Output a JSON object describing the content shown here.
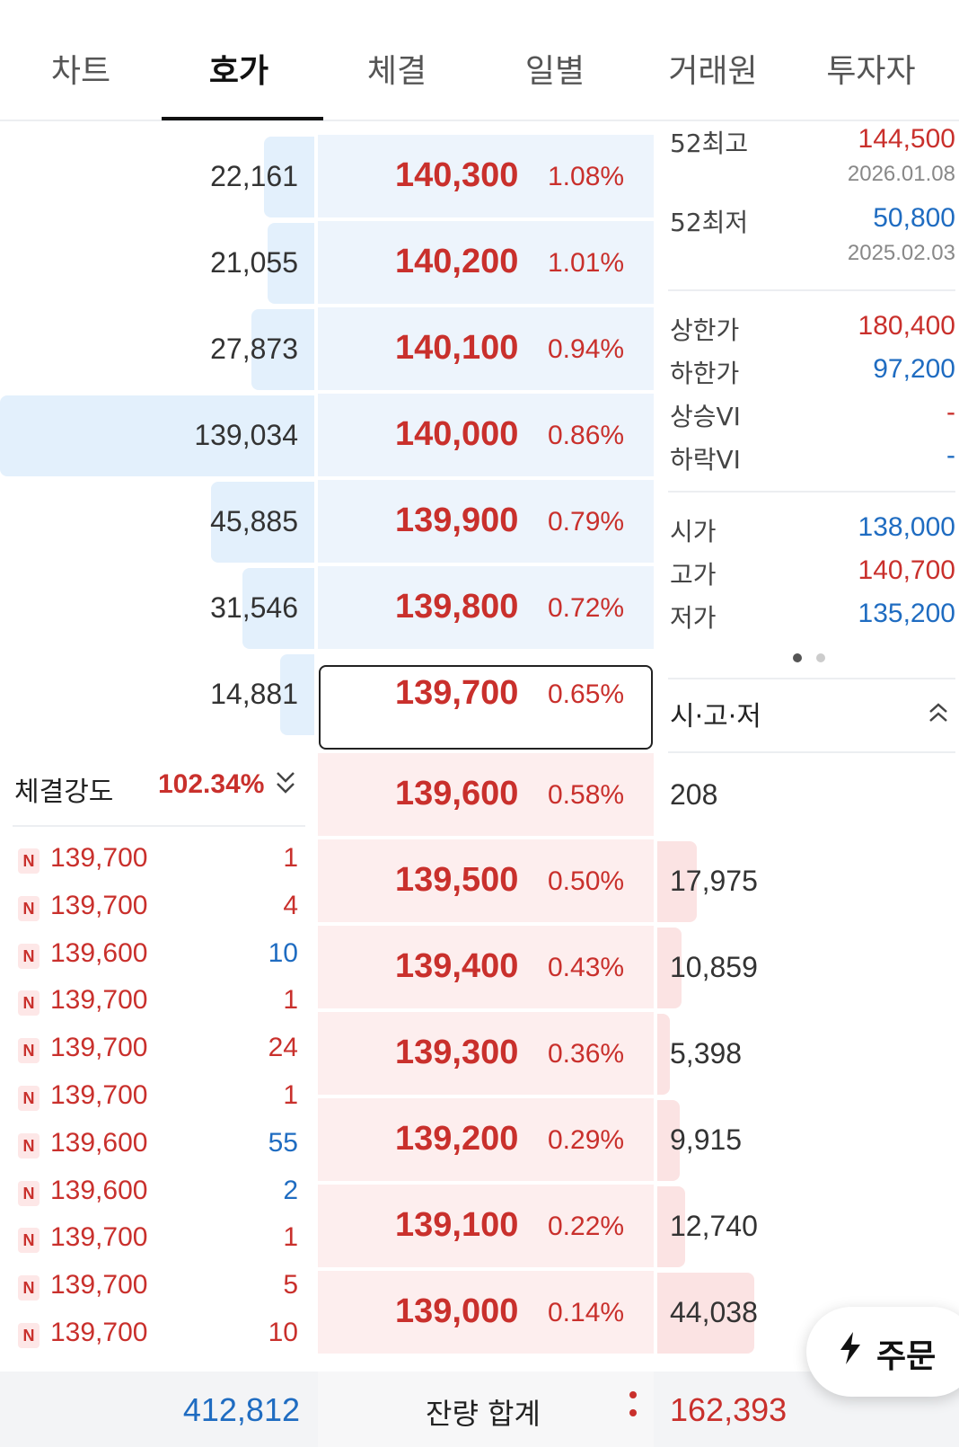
{
  "tabs": [
    "차트",
    "호가",
    "체결",
    "일별",
    "거래원",
    "투자자"
  ],
  "active_tab": "호가",
  "asks": [
    {
      "volume": "22,161",
      "price": "140,300",
      "pct": "1.08%",
      "bar": 0.16
    },
    {
      "volume": "21,055",
      "price": "140,200",
      "pct": "1.01%",
      "bar": 0.15
    },
    {
      "volume": "27,873",
      "price": "140,100",
      "pct": "0.94%",
      "bar": 0.2
    },
    {
      "volume": "139,034",
      "price": "140,000",
      "pct": "0.86%",
      "bar": 1.0
    },
    {
      "volume": "45,885",
      "price": "139,900",
      "pct": "0.79%",
      "bar": 0.33
    },
    {
      "volume": "31,546",
      "price": "139,800",
      "pct": "0.72%",
      "bar": 0.23
    },
    {
      "volume": "14,881",
      "price": "139,700",
      "pct": "0.65%",
      "bar": 0.11
    }
  ],
  "bids": [
    {
      "volume": "208",
      "price": "139,600",
      "pct": "0.58%",
      "bar": 0.0
    },
    {
      "volume": "17,975",
      "price": "139,500",
      "pct": "0.50%",
      "bar": 0.41
    },
    {
      "volume": "10,859",
      "price": "139,400",
      "pct": "0.43%",
      "bar": 0.25
    },
    {
      "volume": "5,398",
      "price": "139,300",
      "pct": "0.36%",
      "bar": 0.12
    },
    {
      "volume": "9,915",
      "price": "139,200",
      "pct": "0.29%",
      "bar": 0.23
    },
    {
      "volume": "12,740",
      "price": "139,100",
      "pct": "0.22%",
      "bar": 0.29
    },
    {
      "volume": "44,038",
      "price": "139,000",
      "pct": "0.14%",
      "bar": 1.0
    }
  ],
  "info": {
    "high52_label": "52최고",
    "high52_value": "144,500",
    "high52_date": "2026.01.08",
    "low52_label": "52최저",
    "low52_value": "50,800",
    "low52_date": "2025.02.03",
    "upper_label": "상한가",
    "upper_value": "180,400",
    "lower_label": "하한가",
    "lower_value": "97,200",
    "vi_up_label": "상승VI",
    "vi_up_value": "-",
    "vi_down_label": "하락VI",
    "vi_down_value": "-",
    "open_label": "시가",
    "open_value": "138,000",
    "high_label": "고가",
    "high_value": "140,700",
    "low_label": "저가",
    "low_value": "135,200"
  },
  "sgj_label": "시·고·저",
  "strength": {
    "label": "체결강도",
    "value": "102.34%"
  },
  "trades": [
    {
      "badge": "N",
      "price": "139,700",
      "qty": "1",
      "side": "red"
    },
    {
      "badge": "N",
      "price": "139,700",
      "qty": "4",
      "side": "red"
    },
    {
      "badge": "N",
      "price": "139,600",
      "qty": "10",
      "side": "blue"
    },
    {
      "badge": "N",
      "price": "139,700",
      "qty": "1",
      "side": "red"
    },
    {
      "badge": "N",
      "price": "139,700",
      "qty": "24",
      "side": "red"
    },
    {
      "badge": "N",
      "price": "139,700",
      "qty": "1",
      "side": "red"
    },
    {
      "badge": "N",
      "price": "139,600",
      "qty": "55",
      "side": "blue"
    },
    {
      "badge": "N",
      "price": "139,600",
      "qty": "2",
      "side": "blue"
    },
    {
      "badge": "N",
      "price": "139,700",
      "qty": "1",
      "side": "red"
    },
    {
      "badge": "N",
      "price": "139,700",
      "qty": "5",
      "side": "red"
    },
    {
      "badge": "N",
      "price": "139,700",
      "qty": "10",
      "side": "red"
    }
  ],
  "footer": {
    "ask_total": "412,812",
    "label": "잔량 합계",
    "bid_total": "162,393"
  },
  "order_button": "주문",
  "icons": {
    "bolt": "lightning-icon",
    "chevron_up": "double-chevron-up-icon",
    "chevron_down": "chevron-down-icon"
  },
  "colors": {
    "up": "#c9302c",
    "down": "#1f6cc1",
    "ask_bg": "#edf4fc",
    "bid_bg": "#fdeeee"
  }
}
